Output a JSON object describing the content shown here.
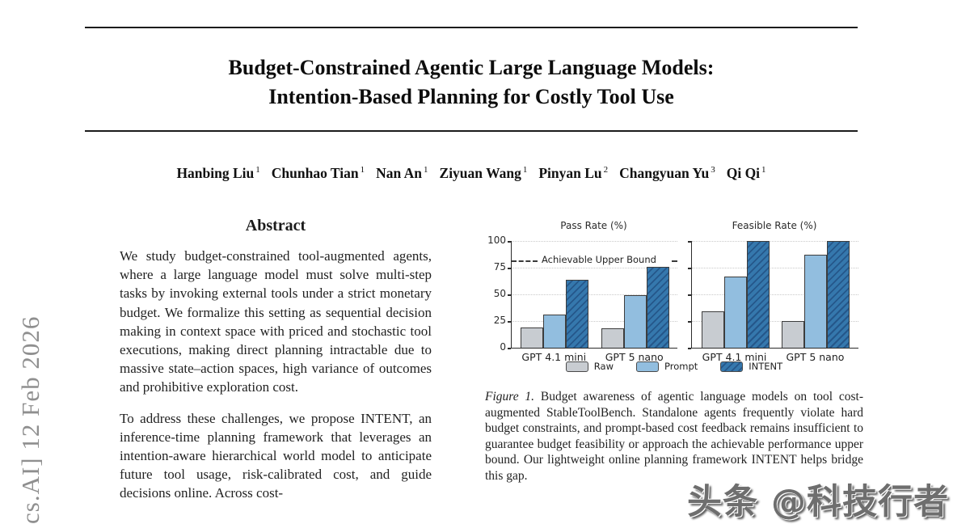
{
  "arxiv_sidebar": {
    "text": "cs.AI]  12 Feb 2026"
  },
  "header": {
    "title_line1": "Budget-Constrained Agentic Large Language Models:",
    "title_line2": "Intention-Based Planning for Costly Tool Use"
  },
  "authors": [
    {
      "name": "Hanbing Liu",
      "affil": "1"
    },
    {
      "name": "Chunhao Tian",
      "affil": "1"
    },
    {
      "name": "Nan An",
      "affil": "1"
    },
    {
      "name": "Ziyuan Wang",
      "affil": "1"
    },
    {
      "name": "Pinyan Lu",
      "affil": "2"
    },
    {
      "name": "Changyuan Yu",
      "affil": "3"
    },
    {
      "name": "Qi Qi",
      "affil": "1"
    }
  ],
  "abstract": {
    "heading": "Abstract",
    "paragraph1": "We study budget-constrained tool-augmented agents, where a large language model must solve multi-step tasks by invoking external tools under a strict monetary budget. We formalize this setting as sequential decision making in context space with priced and stochastic tool executions, making direct planning intractable due to massive state–action spaces, high variance of outcomes and prohibitive exploration cost.",
    "paragraph2": "To address these challenges, we propose INTENT, an inference-time planning framework that leverages an intention-aware hierarchical world model to anticipate future tool usage, risk-calibrated cost, and guide decisions online.  Across cost-"
  },
  "figure": {
    "caption_label": "Figure 1.",
    "caption_text": "Budget awareness of agentic language models on tool cost-augmented StableToolBench. Standalone agents frequently violate hard budget constraints, and prompt-based cost feedback remains insufficient to guarantee budget feasibility or approach the achievable performance upper bound. Our lightweight online planning framework INTENT helps bridge this gap."
  },
  "chart_data": {
    "type": "bar",
    "ylim": [
      0,
      100
    ],
    "y_ticks": [
      0,
      25,
      50,
      75,
      100
    ],
    "grid": "horizontal dotted at 25/50/75/100",
    "legend_position": "bottom center",
    "colors": {
      "raw": "#c8ccd1",
      "prompt": "#92bedf",
      "intent": "#3578ad",
      "intent_stripe": "#25578a",
      "axis": "#2b2b2b",
      "grid": "#c9c9c9"
    },
    "panels": [
      {
        "title": "Pass Rate (%)",
        "categories": [
          "GPT 4.1 mini",
          "GPT 5 nano"
        ],
        "series": [
          {
            "name": "Raw",
            "values": [
              19,
              18
            ]
          },
          {
            "name": "Prompt",
            "values": [
              31,
              49
            ]
          },
          {
            "name": "INTENT",
            "values": [
              64,
              76
            ]
          }
        ],
        "annotation": {
          "label": "Achievable Upper Bound",
          "y": 82
        },
        "show_y_labels": true
      },
      {
        "title": "Feasible Rate (%)",
        "categories": [
          "GPT 4.1 mini",
          "GPT 5 nano"
        ],
        "series": [
          {
            "name": "Raw",
            "values": [
              34,
              25
            ]
          },
          {
            "name": "Prompt",
            "values": [
              67,
              87
            ]
          },
          {
            "name": "INTENT",
            "values": [
              100,
              100
            ]
          }
        ],
        "show_y_labels": false
      }
    ],
    "legend": [
      {
        "label": "Raw",
        "fill": "raw"
      },
      {
        "label": "Prompt",
        "fill": "prompt"
      },
      {
        "label": "INTENT",
        "fill": "intent",
        "hatch": true
      }
    ]
  },
  "watermark": {
    "text": "头条 @科技行者"
  }
}
